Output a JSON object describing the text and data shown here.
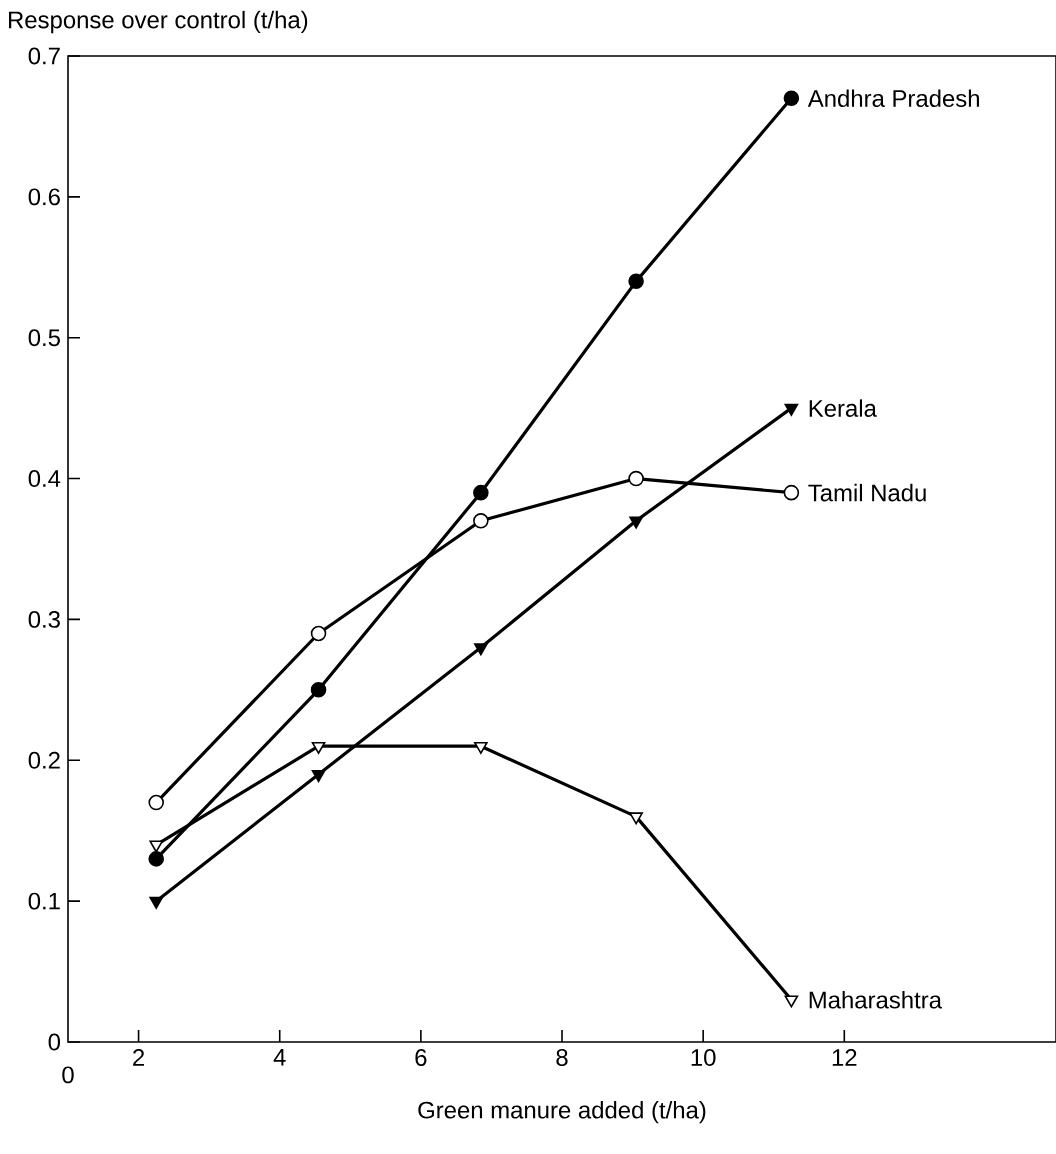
{
  "chart_data": {
    "type": "line",
    "xlabel": "Green manure added (t/ha)",
    "ylabel": "Response over control (t/ha)",
    "x": [
      2.25,
      4.55,
      6.85,
      9.05,
      11.25
    ],
    "xlim": [
      1,
      15
    ],
    "xticks": [
      2,
      4,
      6,
      8,
      10,
      12
    ],
    "ylim": [
      0,
      0.7
    ],
    "yticks": [
      0,
      0.1,
      0.2,
      0.3,
      0.4,
      0.5,
      0.6,
      0.7
    ],
    "series": [
      {
        "name": "Andhra Pradesh",
        "color": "#000000",
        "marker": "circle",
        "colors": [
          "#000000",
          "#000000",
          "#000000",
          "#000000",
          "#000000"
        ],
        "values": [
          0.13,
          0.25,
          0.39,
          0.54,
          0.67
        ]
      },
      {
        "name": "Kerala",
        "color": "#000000",
        "marker": "triangle",
        "colors": [
          "#000000",
          "#000000",
          "#000000",
          "#000000",
          "#000000"
        ],
        "values": [
          0.1,
          0.19,
          0.28,
          0.37,
          0.45
        ]
      },
      {
        "name": "Tamil Nadu",
        "color": "#000000",
        "marker": "circle",
        "colors": [
          "#ffffff",
          "#ffffff",
          "#ffffff",
          "#ffffff",
          "#ffffff"
        ],
        "values": [
          0.17,
          0.29,
          0.37,
          0.4,
          0.39
        ]
      },
      {
        "name": "Maharashtra",
        "color": "#000000",
        "marker": "triangle",
        "colors": [
          "#ffffff",
          "#ffffff",
          "#ffffff",
          "#ffffff",
          "#ffffff"
        ],
        "values": [
          0.14,
          0.21,
          0.21,
          0.16,
          0.03
        ]
      }
    ],
    "annotations": [
      "0"
    ],
    "grid": false,
    "legend": false,
    "line_style": "solid"
  }
}
